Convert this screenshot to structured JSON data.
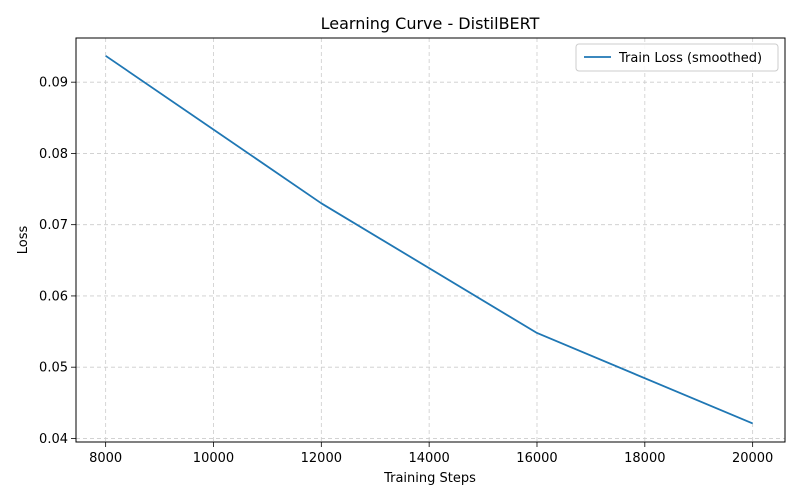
{
  "chart_data": {
    "type": "line",
    "title": "Learning Curve - DistilBERT",
    "xlabel": "Training Steps",
    "ylabel": "Loss",
    "xlim": [
      7450,
      20600
    ],
    "ylim": [
      0.0395,
      0.0962
    ],
    "xticks": [
      8000,
      10000,
      12000,
      14000,
      16000,
      18000,
      20000
    ],
    "yticks": [
      0.04,
      0.05,
      0.06,
      0.07,
      0.08,
      0.09
    ],
    "ytick_labels": [
      "0.04",
      "0.05",
      "0.06",
      "0.07",
      "0.08",
      "0.09"
    ],
    "grid": true,
    "legend_position": "top-right",
    "series": [
      {
        "name": "Train Loss (smoothed)",
        "color": "#1f77b4",
        "x": [
          8000,
          12000,
          16000,
          20000
        ],
        "y": [
          0.0937,
          0.073,
          0.0548,
          0.0421
        ]
      }
    ]
  }
}
